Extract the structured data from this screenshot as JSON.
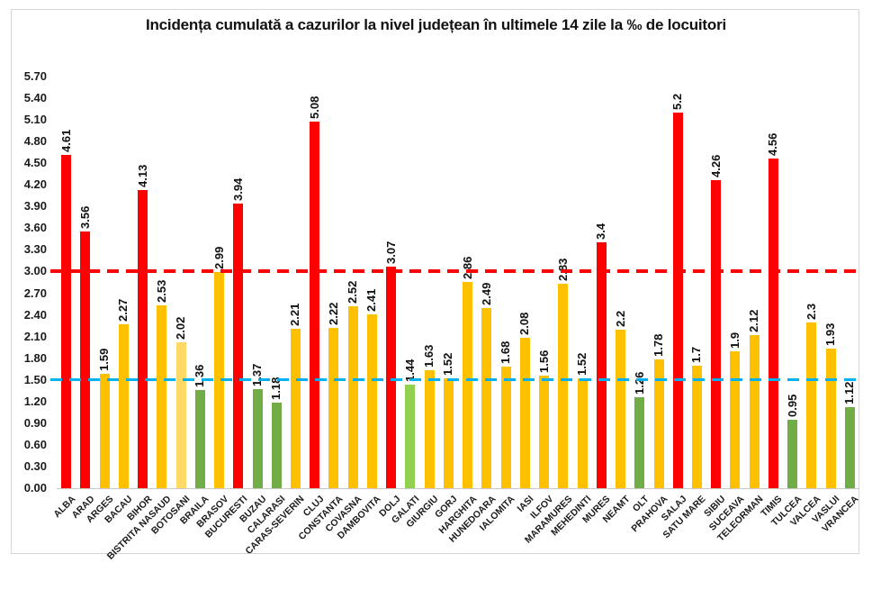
{
  "chart_data": {
    "type": "bar",
    "title": "Incidența cumulată a cazurilor la nivel județean în ultimele 14 zile la ‰ de locuitori",
    "xlabel": "",
    "ylabel": "",
    "ylim": [
      0,
      5.7
    ],
    "y_tick_step": 0.3,
    "y_ticks": [
      "0.00",
      "0.30",
      "0.60",
      "0.90",
      "1.20",
      "1.50",
      "1.80",
      "2.10",
      "2.40",
      "2.70",
      "3.00",
      "3.30",
      "3.60",
      "3.90",
      "4.20",
      "4.50",
      "4.80",
      "5.10",
      "5.40",
      "5.70"
    ],
    "grid": false,
    "legend": false,
    "categories": [
      "ALBA",
      "ARAD",
      "ARGES",
      "BACAU",
      "BIHOR",
      "BISTRITA NASAUD",
      "BOTOSANI",
      "BRAILA",
      "BRASOV",
      "BUCURESTI",
      "BUZAU",
      "CALARASI",
      "CARAS-SEVERIN",
      "CLUJ",
      "CONSTANTA",
      "COVASNA",
      "DAMBOVITA",
      "DOLJ",
      "GALATI",
      "GIURGIU",
      "GORJ",
      "HARGHITA",
      "HUNEDOARA",
      "IALOMITA",
      "IASI",
      "ILFOV",
      "MARAMURES",
      "MEHEDINTI",
      "MURES",
      "NEAMT",
      "OLT",
      "PRAHOVA",
      "SALAJ",
      "SATU MARE",
      "SIBIU",
      "SUCEAVA",
      "TELEORMAN",
      "TIMIS",
      "TULCEA",
      "VALCEA",
      "VASLUI",
      "VRANCEA"
    ],
    "values": [
      4.61,
      3.56,
      1.59,
      2.27,
      4.13,
      2.53,
      2.02,
      1.36,
      2.99,
      3.94,
      1.37,
      1.18,
      2.21,
      5.08,
      2.22,
      2.52,
      2.41,
      3.07,
      1.44,
      1.63,
      1.52,
      2.86,
      2.49,
      1.68,
      2.08,
      1.56,
      2.83,
      1.52,
      3.4,
      2.2,
      1.26,
      1.78,
      5.2,
      1.7,
      4.26,
      1.9,
      2.12,
      4.56,
      0.95,
      2.3,
      1.93,
      1.12
    ],
    "bar_labels": [
      "4.61",
      "3.56",
      "1.59",
      "2.27",
      "4.13",
      "2.53",
      "2.02",
      "1.36",
      "2.99",
      "3.94",
      "1.37",
      "1.18",
      "2.21",
      "5.08",
      "2.22",
      "2.52",
      "2.41",
      "3.07",
      "1.44",
      "1.63",
      "1.52",
      "2.86",
      "2.49",
      "1.68",
      "2.08",
      "1.56",
      "2.83",
      "1.52",
      "3.4",
      "2.2",
      "1.26",
      "1.78",
      "5.2",
      "1.7",
      "4.26",
      "1.9",
      "2.12",
      "4.56",
      "0.95",
      "2.3",
      "1.93",
      "1.12"
    ],
    "bar_color_keys": [
      "red",
      "red",
      "orange",
      "orange",
      "red",
      "orange",
      "light_orange",
      "green",
      "orange",
      "red",
      "green",
      "green",
      "orange",
      "red",
      "orange",
      "orange",
      "orange",
      "red",
      "light_green",
      "orange",
      "orange",
      "orange",
      "orange",
      "orange",
      "orange",
      "orange",
      "orange",
      "orange",
      "red",
      "orange",
      "green",
      "orange",
      "red",
      "orange",
      "red",
      "orange",
      "orange",
      "red",
      "green",
      "orange",
      "orange",
      "green"
    ],
    "palette": {
      "red": "#FF0000",
      "orange": "#FFC000",
      "light_orange": "#FFD966",
      "green": "#70AD47",
      "light_green": "#92D050"
    },
    "thresholds": [
      {
        "name": "red-threshold-line",
        "value": 3.0,
        "color": "#FF0000",
        "thickness": 4
      },
      {
        "name": "blue-threshold-line",
        "value": 1.5,
        "color": "#00B0F0",
        "thickness": 3
      }
    ],
    "frame_border_color": "#d6d6d6",
    "axis_line_color": "#c9c9c9"
  }
}
